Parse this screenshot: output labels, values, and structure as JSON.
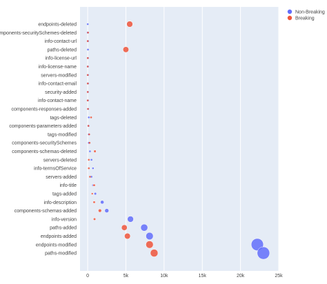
{
  "chart_data": {
    "type": "scatter",
    "title": "",
    "xlabel": "",
    "ylabel": "",
    "xlim": [
      -1000,
      25000
    ],
    "x_ticks": [
      "0",
      "5k",
      "10k",
      "15k",
      "20k",
      "25k"
    ],
    "x_tick_values": [
      0,
      5000,
      10000,
      15000,
      20000,
      25000
    ],
    "grid": true,
    "legend_position": "top-right",
    "categories": [
      "endpoints-deleted",
      "components-securitySchemes-deleted",
      "info-contact-url",
      "paths-deleted",
      "info-license-url",
      "info-license-name",
      "servers-modified",
      "info-contact-email",
      "security-added",
      "info-contact-name",
      "components-responses-added",
      "tags-deleted",
      "components-parameters-added",
      "tags-modified",
      "components-securitySchemes",
      "components-schemas-deleted",
      "servers-deleted",
      "info-termsOfService",
      "servers-added",
      "info-title",
      "tags-added",
      "info-description",
      "components-schemas-added",
      "info-version",
      "paths-added",
      "endpoints-added",
      "endpoints-modified",
      "paths-modified"
    ],
    "series": [
      {
        "name": "Non-Breaking",
        "color": "#636efa",
        "values": [
          10,
          10,
          40,
          40,
          30,
          30,
          40,
          40,
          30,
          30,
          60,
          150,
          100,
          150,
          150,
          300,
          500,
          700,
          500,
          700,
          1000,
          1900,
          2500,
          5600,
          7400,
          8100,
          22200,
          23000
        ]
      },
      {
        "name": "Breaking",
        "color": "#ef553b",
        "values": [
          5500,
          50,
          10,
          5000,
          20,
          10,
          10,
          20,
          10,
          10,
          40,
          450,
          100,
          200,
          250,
          950,
          150,
          150,
          300,
          850,
          600,
          850,
          1600,
          900,
          4800,
          5200,
          8100,
          8700
        ]
      }
    ]
  }
}
